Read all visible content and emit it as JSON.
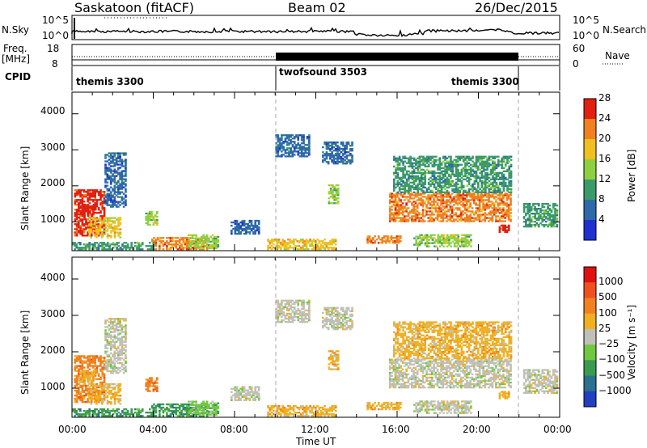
{
  "header": {
    "radar": "Saskatoon (fitACF)",
    "beam": "Beam 02",
    "date": "26/Dec/2015"
  },
  "top_panel": {
    "left_label": "N.Sky",
    "right_label": "N.Search",
    "ticks_left": [
      "10^5",
      "10^0"
    ],
    "ticks_right": [
      "10^5",
      "10^0"
    ]
  },
  "freq_panel": {
    "left_label_1": "Freq.",
    "left_label_2": "[MHz]",
    "right_label": "Nave",
    "ticks_left": [
      "18",
      "8"
    ],
    "ticks_right": [
      "60",
      "0"
    ]
  },
  "cpid": {
    "label": "CPID",
    "segments": [
      "themis 3300",
      "twofsound 3503",
      "themis 3300"
    ]
  },
  "chart_data": [
    {
      "type": "heatmap",
      "name": "power",
      "ylabel": "Slant Range [km]",
      "xlabel": "",
      "y_ticks": [
        "1000",
        "2000",
        "3000",
        "4000"
      ],
      "ylim": [
        200,
        4600
      ],
      "colorbar_label": "Power [dB]",
      "colorbar_ticks": [
        "4",
        "8",
        "12",
        "16",
        "20",
        "24",
        "28"
      ],
      "colors": [
        "#2030d0",
        "#2e6aa8",
        "#3a9a6a",
        "#8fd040",
        "#f0c020",
        "#f08020",
        "#e02010"
      ]
    },
    {
      "type": "heatmap",
      "name": "velocity",
      "ylabel": "Slant Range [km]",
      "xlabel": "Time UT",
      "y_ticks": [
        "1000",
        "2000",
        "3000",
        "4000"
      ],
      "ylim": [
        200,
        4600
      ],
      "x_ticks": [
        "00:00",
        "04:00",
        "08:00",
        "12:00",
        "16:00",
        "20:00",
        "00:00"
      ],
      "colorbar_label": "Velocity [m s⁻¹]",
      "colorbar_ticks": [
        "1000",
        "500",
        "100",
        "25",
        "−25",
        "−100",
        "−500",
        "−1000"
      ],
      "colors": [
        "#2040c0",
        "#2a7090",
        "#3a9a50",
        "#70c840",
        "#c0c0b8",
        "#f0b020",
        "#f08020",
        "#f05020",
        "#e01010"
      ]
    }
  ]
}
